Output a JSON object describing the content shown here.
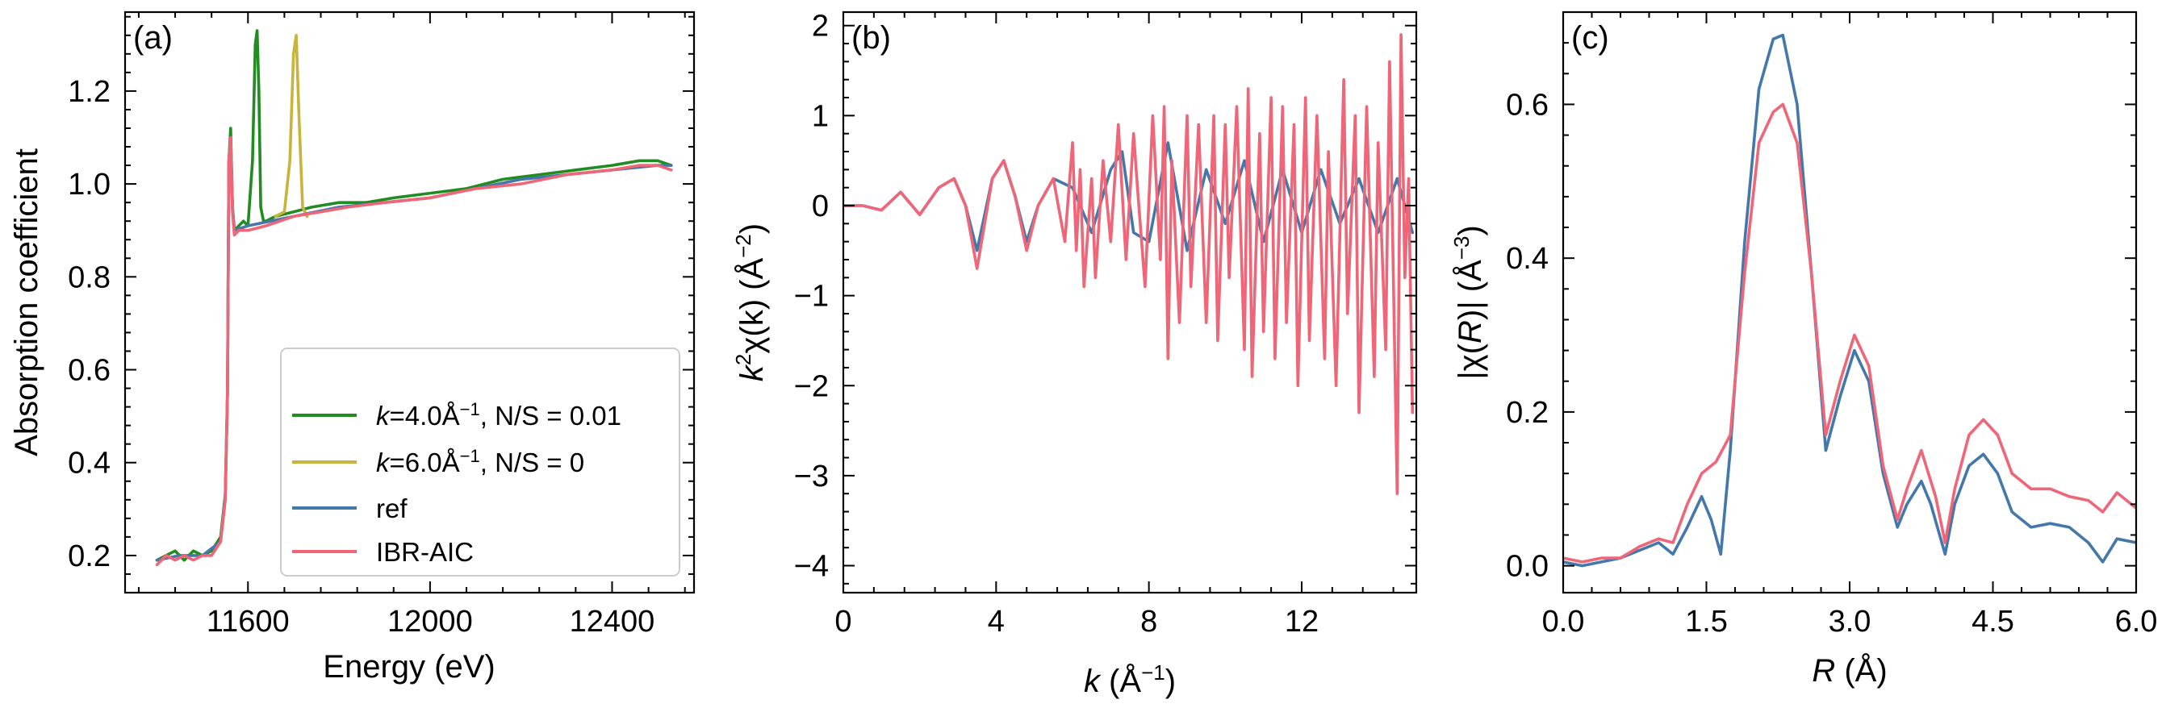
{
  "colors": {
    "green": "#228B22",
    "yellow": "#C8B43C",
    "blue": "#4477AA",
    "pink": "#EE6677"
  },
  "chart_data": [
    {
      "panel": "(a)",
      "type": "line",
      "xlabel": "Energy (eV)",
      "ylabel": "Absorption coefficient",
      "xlim": [
        11330,
        12580
      ],
      "ylim": [
        0.12,
        1.37
      ],
      "xticks": [
        11600,
        12000,
        12400
      ],
      "xtick_labels": [
        "11600",
        "12000",
        "12400"
      ],
      "yticks": [
        0.2,
        0.4,
        0.6,
        0.8,
        1.0,
        1.2
      ],
      "ytick_labels": [
        "0.2",
        "0.4",
        "0.6",
        "0.8",
        "1.0",
        "1.2"
      ],
      "legend": {
        "location": "lower right",
        "entries": [
          {
            "label": "k=4.0Å−1, N/S = 0.01",
            "color": "green"
          },
          {
            "label": "k=6.0Å−1, N/S = 0",
            "color": "yellow"
          },
          {
            "label": "ref",
            "color": "blue"
          },
          {
            "label": "IBR-AIC",
            "color": "pink"
          }
        ]
      },
      "series": [
        {
          "name": "k=4.0Å−1, N/S = 0.01",
          "color": "green",
          "x": [
            11400,
            11420,
            11440,
            11460,
            11480,
            11500,
            11520,
            11540,
            11550,
            11555,
            11558,
            11562,
            11566,
            11570,
            11580,
            11590,
            11600,
            11610,
            11616,
            11620,
            11624,
            11628,
            11634,
            11640,
            11660,
            11700,
            11740,
            11800,
            11860,
            11920,
            12000,
            12080,
            12160,
            12240,
            12320,
            12400,
            12460,
            12500,
            12530
          ],
          "y": [
            0.19,
            0.2,
            0.21,
            0.19,
            0.21,
            0.2,
            0.21,
            0.24,
            0.33,
            0.55,
            1.05,
            1.12,
            0.95,
            0.9,
            0.91,
            0.92,
            0.91,
            1.05,
            1.3,
            1.33,
            1.2,
            0.95,
            0.92,
            0.92,
            0.93,
            0.94,
            0.95,
            0.96,
            0.96,
            0.97,
            0.98,
            0.99,
            1.01,
            1.02,
            1.03,
            1.04,
            1.05,
            1.05,
            1.04
          ]
        },
        {
          "name": "k=6.0Å−1, N/S = 0",
          "color": "yellow",
          "x": [
            11660,
            11680,
            11692,
            11700,
            11706,
            11712,
            11720,
            11730
          ],
          "y": [
            0.93,
            0.94,
            1.05,
            1.28,
            1.32,
            1.15,
            0.95,
            0.93
          ]
        },
        {
          "name": "ref",
          "color": "blue",
          "x": [
            11400,
            11450,
            11500,
            11540,
            11550,
            11555,
            11558,
            11562,
            11566,
            11570,
            11600,
            11700,
            11800,
            11900,
            12000,
            12100,
            12200,
            12300,
            12400,
            12500,
            12530
          ],
          "y": [
            0.19,
            0.2,
            0.2,
            0.23,
            0.32,
            0.55,
            1.05,
            1.1,
            0.95,
            0.9,
            0.91,
            0.93,
            0.95,
            0.96,
            0.97,
            0.99,
            1.01,
            1.02,
            1.03,
            1.04,
            1.04
          ]
        },
        {
          "name": "IBR-AIC",
          "color": "pink",
          "x": [
            11400,
            11420,
            11440,
            11460,
            11480,
            11500,
            11520,
            11540,
            11550,
            11555,
            11558,
            11562,
            11566,
            11570,
            11580,
            11600,
            11640,
            11700,
            11760,
            11820,
            11900,
            12000,
            12100,
            12200,
            12300,
            12400,
            12460,
            12500,
            12530
          ],
          "y": [
            0.18,
            0.2,
            0.19,
            0.2,
            0.19,
            0.2,
            0.2,
            0.23,
            0.32,
            0.55,
            1.05,
            1.1,
            0.94,
            0.89,
            0.9,
            0.9,
            0.91,
            0.93,
            0.94,
            0.95,
            0.96,
            0.97,
            0.99,
            1.0,
            1.02,
            1.03,
            1.04,
            1.04,
            1.03
          ]
        }
      ]
    },
    {
      "panel": "(b)",
      "type": "line",
      "xlabel": "k (Å−1)",
      "ylabel": "k2χ(k) (Å−2)",
      "xlim": [
        0,
        15
      ],
      "ylim": [
        -4.3,
        2.15
      ],
      "xticks": [
        0,
        4,
        8,
        12
      ],
      "xtick_labels": [
        "0",
        "4",
        "8",
        "12"
      ],
      "yticks": [
        -4,
        -3,
        -2,
        -1,
        0,
        1,
        2
      ],
      "ytick_labels": [
        "−4",
        "−3",
        "−2",
        "−1",
        "0",
        "1",
        "2"
      ],
      "series": [
        {
          "name": "ref",
          "color": "blue",
          "x": [
            0,
            0.5,
            1.0,
            1.5,
            2.0,
            2.5,
            2.9,
            3.2,
            3.5,
            3.9,
            4.2,
            4.5,
            4.8,
            5.1,
            5.5,
            6.0,
            6.5,
            7.0,
            7.3,
            7.6,
            8.0,
            8.5,
            9.0,
            9.5,
            10.0,
            10.5,
            11.0,
            11.5,
            12.0,
            12.5,
            13.0,
            13.5,
            14.0,
            14.5,
            14.9
          ],
          "y": [
            0,
            0,
            -0.05,
            0.15,
            -0.1,
            0.2,
            0.3,
            0.0,
            -0.5,
            0.3,
            0.5,
            0.1,
            -0.4,
            0.0,
            0.3,
            0.2,
            -0.3,
            0.4,
            0.6,
            -0.3,
            -0.4,
            0.7,
            -0.5,
            0.4,
            -0.2,
            0.5,
            -0.4,
            0.4,
            -0.3,
            0.4,
            -0.2,
            0.3,
            -0.3,
            0.3,
            -0.3
          ]
        },
        {
          "name": "IBR-AIC",
          "color": "pink",
          "x": [
            0,
            0.5,
            1.0,
            1.5,
            2.0,
            2.5,
            2.9,
            3.2,
            3.5,
            3.9,
            4.2,
            4.5,
            4.8,
            5.1,
            5.5,
            5.8,
            6.0,
            6.1,
            6.2,
            6.3,
            6.5,
            6.6,
            6.8,
            7.0,
            7.2,
            7.4,
            7.6,
            7.7,
            7.9,
            8.1,
            8.3,
            8.4,
            8.5,
            8.6,
            8.8,
            9.0,
            9.1,
            9.3,
            9.5,
            9.7,
            9.8,
            10.0,
            10.1,
            10.3,
            10.5,
            10.6,
            10.7,
            10.9,
            11.0,
            11.2,
            11.3,
            11.5,
            11.6,
            11.8,
            11.9,
            12.1,
            12.2,
            12.4,
            12.6,
            12.7,
            12.9,
            13.1,
            13.2,
            13.4,
            13.5,
            13.7,
            13.9,
            14.0,
            14.2,
            14.3,
            14.5,
            14.6,
            14.7,
            14.8,
            14.9
          ],
          "y": [
            0,
            0,
            -0.05,
            0.15,
            -0.1,
            0.2,
            0.3,
            0.0,
            -0.7,
            0.3,
            0.5,
            0.1,
            -0.5,
            0.0,
            0.3,
            -0.4,
            0.7,
            -0.5,
            0.4,
            -0.9,
            0.3,
            -0.8,
            0.5,
            -0.4,
            0.9,
            -0.6,
            0.8,
            0.2,
            -0.9,
            1.0,
            -0.6,
            1.1,
            -1.7,
            0.5,
            -1.3,
            1.0,
            -0.9,
            0.9,
            -1.3,
            1.0,
            -1.5,
            0.9,
            -0.8,
            1.1,
            -1.6,
            1.3,
            -1.9,
            0.8,
            -1.4,
            1.2,
            -1.7,
            1.1,
            -1.3,
            0.9,
            -2.0,
            1.2,
            -1.5,
            1.0,
            -1.7,
            0.6,
            -2.0,
            1.4,
            -1.2,
            1.0,
            -2.3,
            1.1,
            -1.9,
            0.7,
            -1.6,
            1.6,
            -3.2,
            1.9,
            -0.8,
            0.3,
            -2.3
          ]
        }
      ]
    },
    {
      "panel": "(c)",
      "type": "line",
      "xlabel": "R (Å)",
      "ylabel": "|χ(R)| (Å−3)",
      "xlim": [
        0,
        6
      ],
      "ylim": [
        -0.035,
        0.72
      ],
      "xticks": [
        0,
        1.5,
        3.0,
        4.5,
        6.0
      ],
      "xtick_labels": [
        "0.0",
        "1.5",
        "3.0",
        "4.5",
        "6.0"
      ],
      "yticks": [
        0,
        0.2,
        0.4,
        0.6
      ],
      "ytick_labels": [
        "0.0",
        "0.2",
        "0.4",
        "0.6"
      ],
      "series": [
        {
          "name": "ref",
          "color": "blue",
          "x": [
            0,
            0.2,
            0.4,
            0.6,
            0.8,
            1.0,
            1.15,
            1.3,
            1.45,
            1.55,
            1.65,
            1.75,
            1.9,
            2.05,
            2.2,
            2.3,
            2.45,
            2.6,
            2.75,
            2.9,
            3.05,
            3.2,
            3.35,
            3.5,
            3.6,
            3.75,
            3.85,
            4.0,
            4.1,
            4.25,
            4.4,
            4.55,
            4.7,
            4.9,
            5.1,
            5.3,
            5.5,
            5.65,
            5.8,
            6.0
          ],
          "y": [
            0.005,
            0.0,
            0.005,
            0.01,
            0.02,
            0.03,
            0.015,
            0.05,
            0.09,
            0.06,
            0.015,
            0.15,
            0.42,
            0.62,
            0.685,
            0.69,
            0.6,
            0.38,
            0.15,
            0.22,
            0.28,
            0.24,
            0.12,
            0.05,
            0.08,
            0.11,
            0.08,
            0.015,
            0.08,
            0.13,
            0.145,
            0.12,
            0.07,
            0.05,
            0.055,
            0.05,
            0.03,
            0.005,
            0.035,
            0.03
          ]
        },
        {
          "name": "IBR-AIC",
          "color": "pink",
          "x": [
            0,
            0.2,
            0.4,
            0.6,
            0.8,
            1.0,
            1.15,
            1.3,
            1.45,
            1.6,
            1.75,
            1.9,
            2.05,
            2.2,
            2.3,
            2.45,
            2.6,
            2.75,
            2.9,
            3.05,
            3.2,
            3.35,
            3.5,
            3.6,
            3.75,
            3.9,
            4.0,
            4.1,
            4.25,
            4.4,
            4.55,
            4.7,
            4.9,
            5.1,
            5.3,
            5.5,
            5.65,
            5.8,
            6.0
          ],
          "y": [
            0.01,
            0.005,
            0.01,
            0.01,
            0.025,
            0.035,
            0.03,
            0.08,
            0.12,
            0.135,
            0.17,
            0.38,
            0.55,
            0.59,
            0.6,
            0.55,
            0.38,
            0.17,
            0.24,
            0.3,
            0.26,
            0.13,
            0.06,
            0.1,
            0.15,
            0.09,
            0.03,
            0.1,
            0.17,
            0.19,
            0.17,
            0.12,
            0.1,
            0.1,
            0.09,
            0.085,
            0.07,
            0.095,
            0.075
          ]
        }
      ]
    }
  ]
}
